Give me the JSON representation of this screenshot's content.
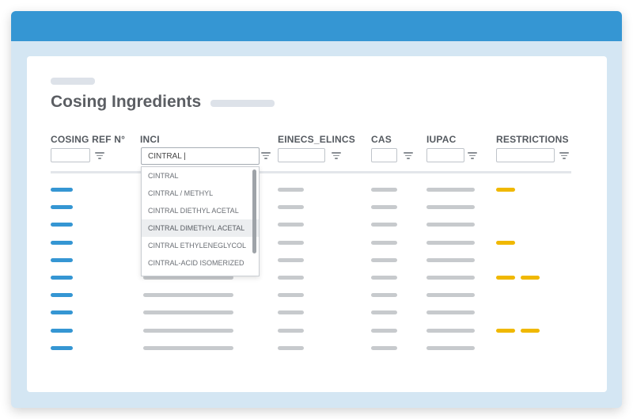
{
  "page": {
    "title": "Cosing Ingredients"
  },
  "columns": [
    "COSING REF N°",
    "INCI",
    "EINECS_ELINCS",
    "CAS",
    "IUPAC",
    "RESTRICTIONS"
  ],
  "inci_filter": {
    "value": "CINTRAL |",
    "options": [
      "CINTRAL",
      "CINTRAL / METHYL",
      "CINTRAL DIETHYL ACETAL",
      "CINTRAL DIMETHYL ACETAL",
      "CINTRAL ETHYLENEGLYCOL",
      "CINTRAL-ACID ISOMERIZED"
    ],
    "highlighted": "CINTRAL DIMETHYL ACETAL"
  },
  "rows": [
    {
      "restrictions": 1
    },
    {
      "restrictions": 0
    },
    {
      "restrictions": 0
    },
    {
      "restrictions": 1
    },
    {
      "restrictions": 0
    },
    {
      "restrictions": 2
    },
    {
      "restrictions": 0
    },
    {
      "restrictions": 0
    },
    {
      "restrictions": 2
    },
    {
      "restrictions": 0
    }
  ],
  "colors": {
    "titlebar": "#3596d3",
    "ref_bar": "#3596d3",
    "placeholder_bar": "#c7cacd",
    "restriction_bar": "#f0b800",
    "window_bg": "#d4e6f3"
  }
}
